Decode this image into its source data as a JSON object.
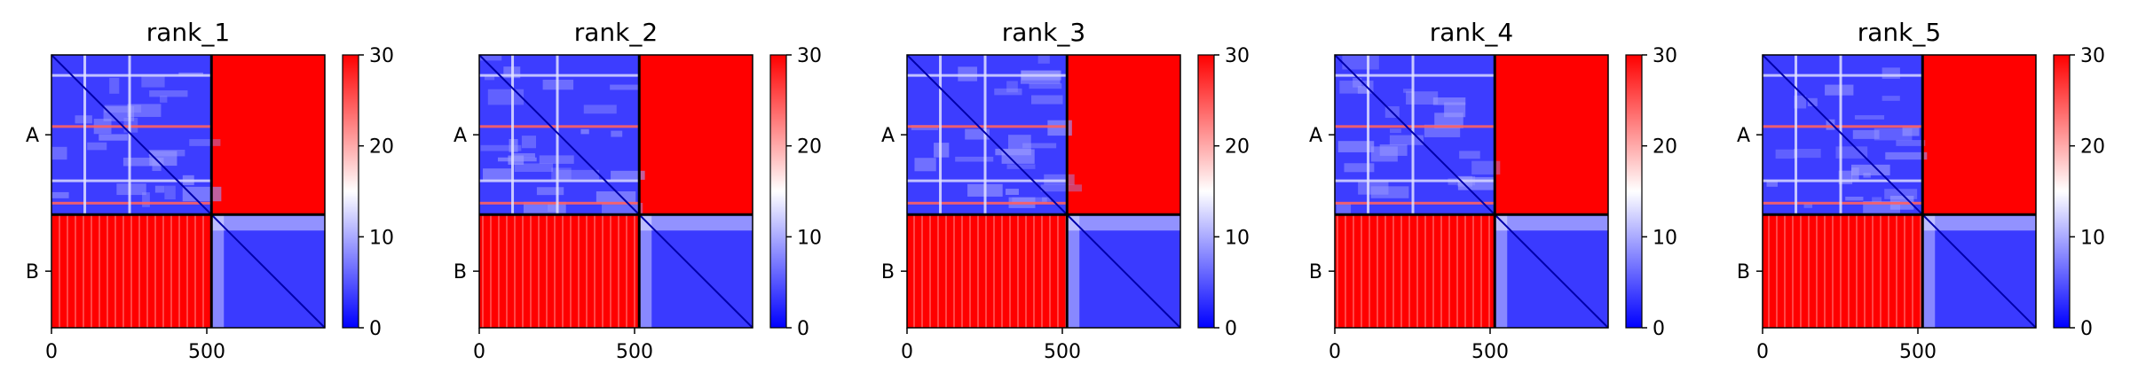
{
  "chart_data": [
    {
      "type": "heatmap",
      "title": "rank_1",
      "x_tick_labels": [
        "0",
        "500"
      ],
      "x_ticks": [
        0,
        500
      ],
      "xlim": [
        0,
        880
      ],
      "y_tick_labels": [
        "A",
        "B"
      ],
      "chain_boundary": 515,
      "colorbar": {
        "cmap": "bwr",
        "vmin": 0,
        "vmax": 30,
        "tick_labels": [
          "0",
          "10",
          "20",
          "30"
        ],
        "ticks": [
          0,
          10,
          20,
          30
        ]
      },
      "blocks": {
        "A-A": "low",
        "A-B": "high",
        "B-A": "high",
        "B-B": "low"
      }
    },
    {
      "type": "heatmap",
      "title": "rank_2",
      "x_tick_labels": [
        "0",
        "500"
      ],
      "x_ticks": [
        0,
        500
      ],
      "xlim": [
        0,
        880
      ],
      "y_tick_labels": [
        "A",
        "B"
      ],
      "chain_boundary": 515,
      "colorbar": {
        "cmap": "bwr",
        "vmin": 0,
        "vmax": 30,
        "tick_labels": [
          "0",
          "10",
          "20",
          "30"
        ],
        "ticks": [
          0,
          10,
          20,
          30
        ]
      },
      "blocks": {
        "A-A": "low",
        "A-B": "high",
        "B-A": "high",
        "B-B": "low"
      }
    },
    {
      "type": "heatmap",
      "title": "rank_3",
      "x_tick_labels": [
        "0",
        "500"
      ],
      "x_ticks": [
        0,
        500
      ],
      "xlim": [
        0,
        880
      ],
      "y_tick_labels": [
        "A",
        "B"
      ],
      "chain_boundary": 515,
      "colorbar": {
        "cmap": "bwr",
        "vmin": 0,
        "vmax": 30,
        "tick_labels": [
          "0",
          "10",
          "20",
          "30"
        ],
        "ticks": [
          0,
          10,
          20,
          30
        ]
      },
      "blocks": {
        "A-A": "low",
        "A-B": "high",
        "B-A": "high",
        "B-B": "low"
      }
    },
    {
      "type": "heatmap",
      "title": "rank_4",
      "x_tick_labels": [
        "0",
        "500"
      ],
      "x_ticks": [
        0,
        500
      ],
      "xlim": [
        0,
        880
      ],
      "y_tick_labels": [
        "A",
        "B"
      ],
      "chain_boundary": 515,
      "colorbar": {
        "cmap": "bwr",
        "vmin": 0,
        "vmax": 30,
        "tick_labels": [
          "0",
          "10",
          "20",
          "30"
        ],
        "ticks": [
          0,
          10,
          20,
          30
        ]
      },
      "blocks": {
        "A-A": "low",
        "A-B": "high",
        "B-A": "high",
        "B-B": "low"
      }
    },
    {
      "type": "heatmap",
      "title": "rank_5",
      "x_tick_labels": [
        "0",
        "500"
      ],
      "x_ticks": [
        0,
        500
      ],
      "xlim": [
        0,
        880
      ],
      "y_tick_labels": [
        "A",
        "B"
      ],
      "chain_boundary": 515,
      "colorbar": {
        "cmap": "bwr",
        "vmin": 0,
        "vmax": 30,
        "tick_labels": [
          "0",
          "10",
          "20",
          "30"
        ],
        "ticks": [
          0,
          10,
          20,
          30
        ]
      },
      "blocks": {
        "A-A": "low",
        "A-B": "high",
        "B-A": "high",
        "B-B": "low"
      }
    }
  ],
  "colors": {
    "low": "#0000ff",
    "mid": "#ffffff",
    "high": "#ff0000",
    "axis": "#000000",
    "background": "#ffffff"
  }
}
